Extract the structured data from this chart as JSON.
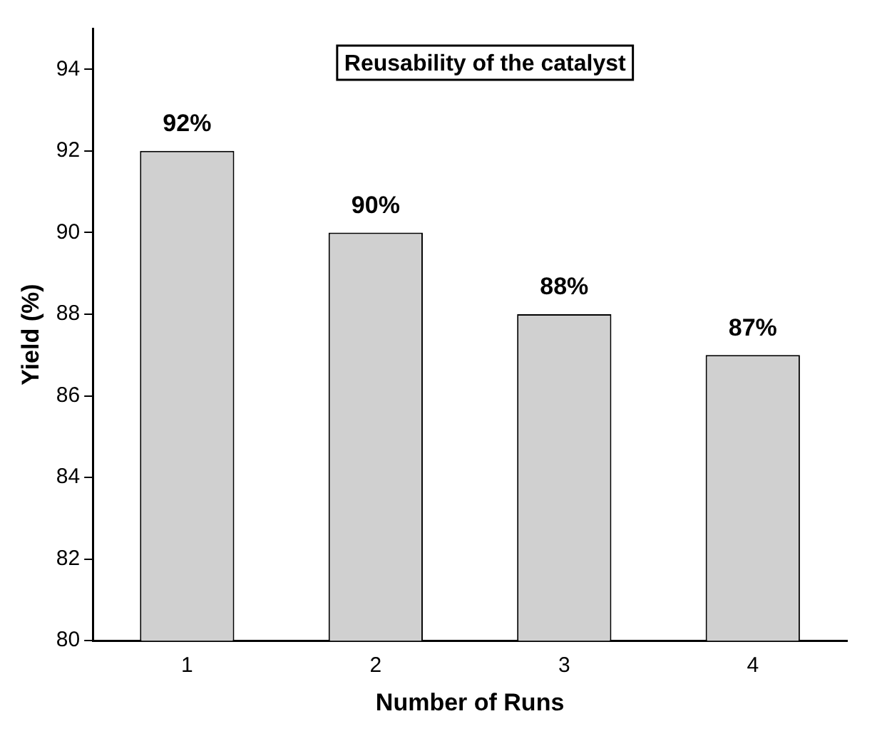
{
  "chart_data": {
    "type": "bar",
    "title": "Reusability of the catalyst",
    "xlabel": "Number of Runs",
    "ylabel": "Yield (%)",
    "categories": [
      "1",
      "2",
      "3",
      "4"
    ],
    "values": [
      92,
      90,
      88,
      87
    ],
    "color": "#d0d0d0",
    "value_labels": [
      "92%",
      "90%",
      "88%",
      "87%"
    ],
    "ylim": [
      80,
      95
    ],
    "yticks": [
      80,
      82,
      84,
      86,
      88,
      90,
      92,
      94
    ],
    "grid": false,
    "legend": false
  }
}
